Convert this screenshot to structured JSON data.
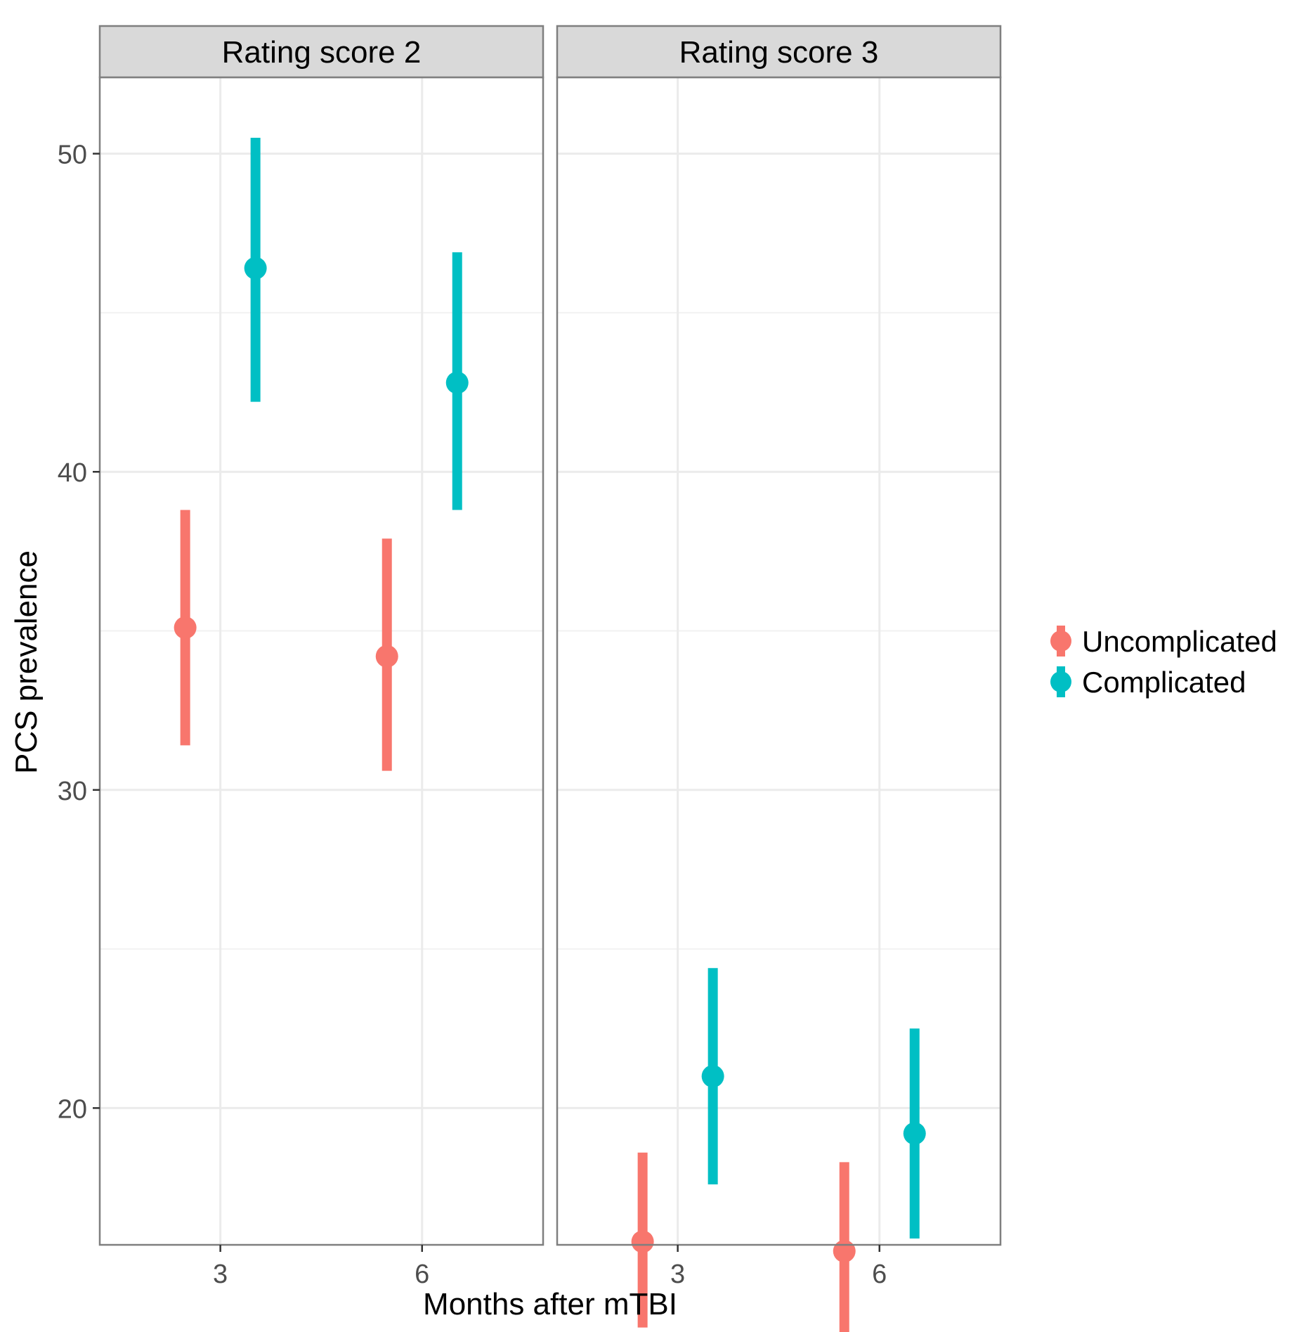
{
  "chart_data": {
    "type": "pointrange",
    "xlabel": "Months after mTBI",
    "ylabel": "PCS prevalence",
    "ylim": [
      15.7,
      52.4
    ],
    "y_major_ticks": [
      20,
      30,
      40,
      50
    ],
    "y_tick_labels": [
      "20",
      "30",
      "40",
      "50"
    ],
    "y_minor_ticks": [
      25,
      35,
      45
    ],
    "x_categories": [
      "3",
      "6"
    ],
    "legend": {
      "position": "right",
      "entries": [
        {
          "name": "Uncomplicated",
          "color": "#F8766D"
        },
        {
          "name": "Complicated",
          "color": "#00BFC4"
        }
      ]
    },
    "facets": [
      {
        "title": "Rating score 2",
        "series": [
          {
            "name": "Uncomplicated",
            "color": "#F8766D",
            "points": [
              {
                "x": "3",
                "y": 35.1,
                "low": 31.4,
                "high": 38.8
              },
              {
                "x": "6",
                "y": 34.2,
                "low": 30.6,
                "high": 37.9
              }
            ]
          },
          {
            "name": "Complicated",
            "color": "#00BFC4",
            "points": [
              {
                "x": "3",
                "y": 46.4,
                "low": 42.2,
                "high": 50.5
              },
              {
                "x": "6",
                "y": 42.8,
                "low": 38.8,
                "high": 46.9
              }
            ]
          }
        ]
      },
      {
        "title": "Rating score 3",
        "series": [
          {
            "name": "Uncomplicated",
            "color": "#F8766D",
            "points": [
              {
                "x": "3",
                "y": 15.8,
                "low": 13.1,
                "high": 18.6
              },
              {
                "x": "6",
                "y": 15.5,
                "low": 12.8,
                "high": 18.3
              }
            ]
          },
          {
            "name": "Complicated",
            "color": "#00BFC4",
            "points": [
              {
                "x": "3",
                "y": 21.0,
                "low": 17.6,
                "high": 24.4
              },
              {
                "x": "6",
                "y": 19.2,
                "low": 15.9,
                "high": 22.5
              }
            ]
          }
        ]
      }
    ]
  }
}
